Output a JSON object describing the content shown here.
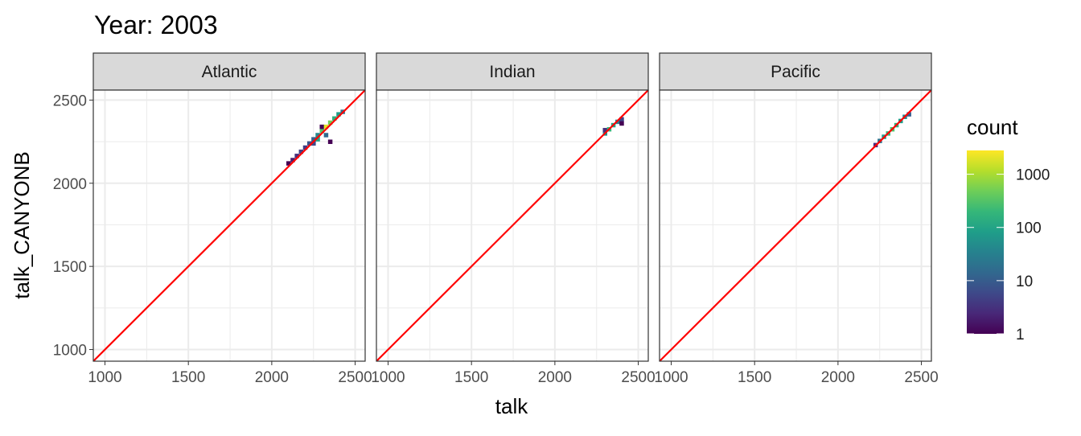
{
  "chart_data": {
    "type": "heatmap",
    "title": "Year: 2003",
    "xlabel": "talk",
    "ylabel": "talk_CANYONB",
    "xlim": [
      930,
      2560
    ],
    "ylim": [
      930,
      2560
    ],
    "xticks": [
      1000,
      1500,
      2000,
      2500
    ],
    "yticks": [
      1000,
      1500,
      2000,
      2500
    ],
    "grid": true,
    "reference_line": {
      "slope": 1,
      "intercept": 0,
      "color": "#FF0000"
    },
    "legend": {
      "title": "count",
      "position": "right",
      "scale": "log10",
      "ticks": [
        1,
        10,
        100,
        1000
      ],
      "range": [
        1,
        2800
      ],
      "palette": "viridis"
    },
    "facets": [
      {
        "name": "Atlantic",
        "bins": [
          [
            2100,
            2120,
            1
          ],
          [
            2125,
            2140,
            2
          ],
          [
            2150,
            2165,
            3
          ],
          [
            2175,
            2190,
            5
          ],
          [
            2200,
            2215,
            4
          ],
          [
            2225,
            2240,
            8
          ],
          [
            2250,
            2240,
            6
          ],
          [
            2250,
            2265,
            12
          ],
          [
            2275,
            2265,
            100
          ],
          [
            2275,
            2290,
            40
          ],
          [
            2300,
            2315,
            300
          ],
          [
            2300,
            2340,
            1
          ],
          [
            2325,
            2290,
            15
          ],
          [
            2325,
            2340,
            2000
          ],
          [
            2350,
            2250,
            1
          ],
          [
            2350,
            2365,
            500
          ],
          [
            2375,
            2390,
            150
          ],
          [
            2400,
            2415,
            80
          ],
          [
            2425,
            2430,
            20
          ]
        ]
      },
      {
        "name": "Indian",
        "bins": [
          [
            2300,
            2300,
            60
          ],
          [
            2300,
            2320,
            3
          ],
          [
            2325,
            2325,
            200
          ],
          [
            2350,
            2350,
            100
          ],
          [
            2375,
            2370,
            30
          ],
          [
            2400,
            2385,
            5
          ],
          [
            2400,
            2360,
            1
          ]
        ]
      },
      {
        "name": "Pacific",
        "bins": [
          [
            2225,
            2230,
            3
          ],
          [
            2250,
            2255,
            20
          ],
          [
            2275,
            2280,
            80
          ],
          [
            2300,
            2300,
            200
          ],
          [
            2325,
            2325,
            300
          ],
          [
            2350,
            2350,
            150
          ],
          [
            2375,
            2375,
            80
          ],
          [
            2400,
            2400,
            40
          ],
          [
            2425,
            2415,
            10
          ]
        ]
      }
    ]
  }
}
